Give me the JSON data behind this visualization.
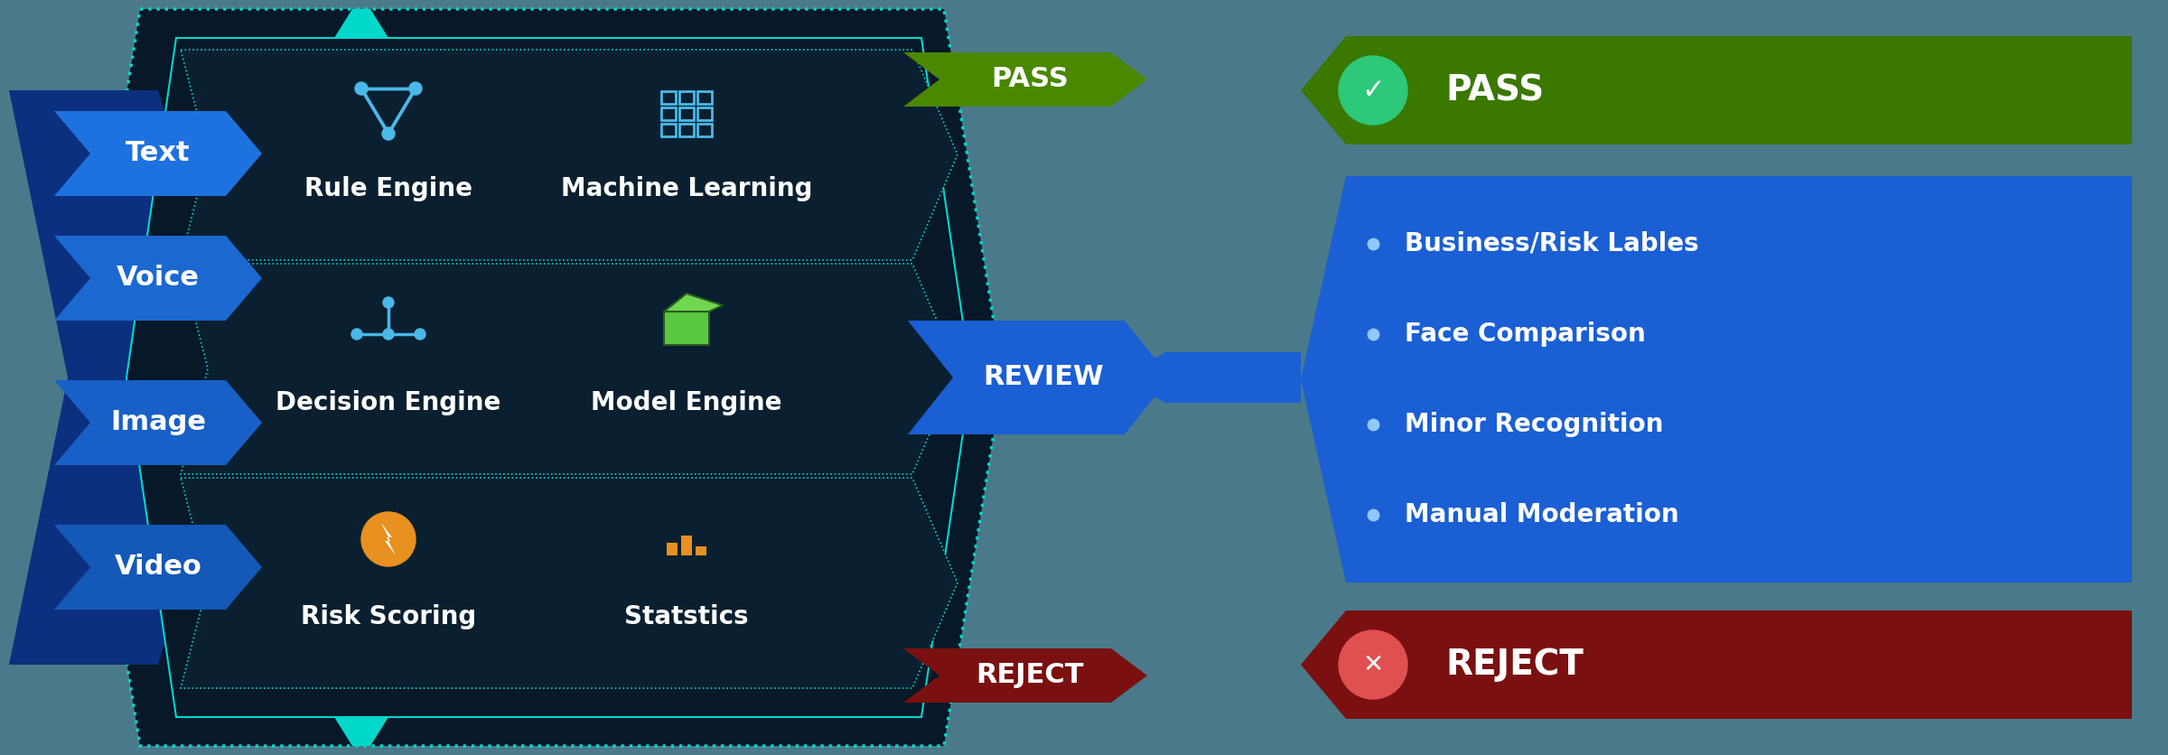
{
  "bg_color": "#4a7a8a",
  "input_labels": [
    "Text",
    "Voice",
    "Image",
    "Video"
  ],
  "rows": [
    {
      "label1": "Rule Engine",
      "label2": "Machine Learning"
    },
    {
      "label1": "Decision Engine",
      "label2": "Model Engine"
    },
    {
      "label1": "Risk Scoring",
      "label2": "Statstics"
    }
  ],
  "output_pass_label": "PASS",
  "output_review_label": "REVIEW",
  "output_reject_label": "REJECT",
  "right_pass_label": "PASS",
  "right_review_items": [
    "Business/Risk Lables",
    "Face Comparison",
    "Minor Recognition",
    "Manual Moderation"
  ],
  "right_reject_label": "REJECT",
  "center_bg": "#071828",
  "center_border": "#00d8cc",
  "row_bg": "#0a2030",
  "row_border": "#00d8cc",
  "input_bg_colors": [
    "#1e72e0",
    "#1a68d0",
    "#1860c8",
    "#1458b8"
  ],
  "input_bg_dark": "#0e3a88",
  "output_pass_color": "#4a8800",
  "output_review_color": "#1a5fd4",
  "output_reject_color": "#7a1010",
  "right_pass_color": "#3a7800",
  "right_review_bg": "#1a5fd4",
  "right_reject_color": "#7a1010",
  "icon_rule_color": "#4ab8e8",
  "icon_ml_color": "#4ab8e8",
  "icon_decision_color": "#4ab8e8",
  "icon_model_color": "#5ac840",
  "icon_risk_color": "#e89020",
  "icon_stats_color": "#e89020",
  "pass_circle_color": "#2ec87a",
  "reject_circle_color": "#e05050"
}
